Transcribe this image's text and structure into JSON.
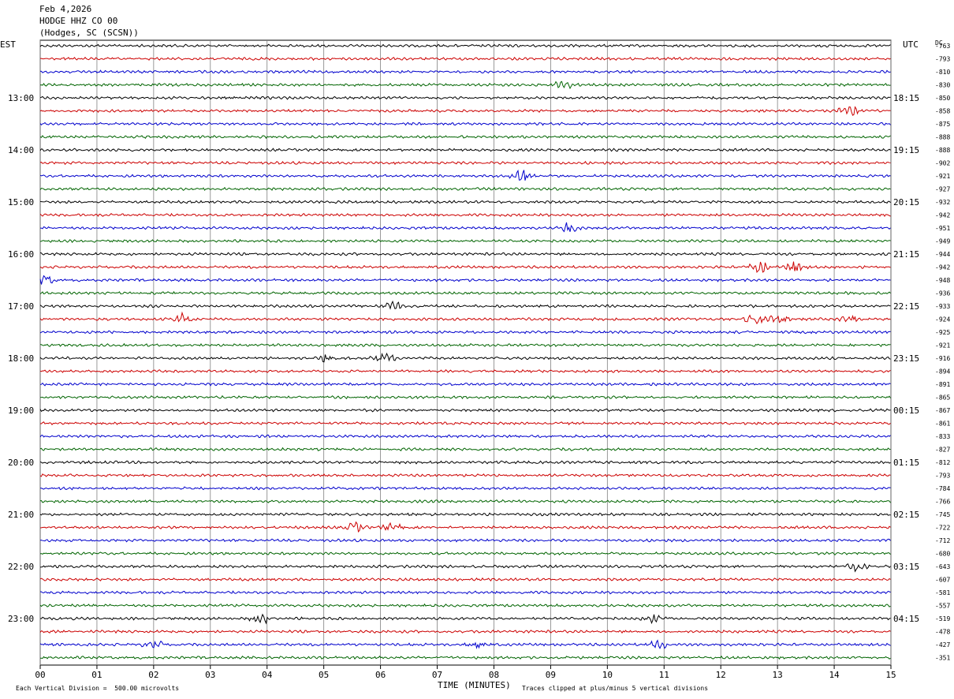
{
  "header": {
    "date": "Feb 4,2026",
    "station": "HODGE HHZ CO 00",
    "location": "(Hodges, SC (SCSN))"
  },
  "left_zone_label": "EST",
  "right_zone_label": "UTC",
  "dc_label": "DC",
  "footer": {
    "x_axis_title": "TIME (MINUTES)",
    "scale_note": "Each Vertical Division =  500.00 microvolts",
    "clip_note": "Traces clipped at plus/minus 5 vertical divisions"
  },
  "chart_data": {
    "type": "line",
    "title": "HODGE HHZ CO 00",
    "xlabel": "TIME (MINUTES)",
    "xlim": [
      0,
      15
    ],
    "x_ticks": [
      "00",
      "01",
      "02",
      "03",
      "04",
      "05",
      "06",
      "07",
      "08",
      "09",
      "10",
      "11",
      "12",
      "13",
      "14",
      "15"
    ],
    "trace_colors": [
      "#000000",
      "#cc0000",
      "#0000cc",
      "#006400"
    ],
    "left_hour_labels": [
      "13:00",
      "14:00",
      "15:00",
      "16:00",
      "17:00",
      "18:00",
      "19:00",
      "20:00",
      "21:00",
      "22:00",
      "23:00"
    ],
    "right_hour_labels": [
      "18:15",
      "19:15",
      "20:15",
      "21:15",
      "22:15",
      "23:15",
      "00:15",
      "01:15",
      "02:15",
      "03:15",
      "04:15"
    ],
    "dc_offsets": [
      -763,
      -793,
      -810,
      -830,
      -850,
      -858,
      -875,
      -888,
      -888,
      -902,
      -921,
      -927,
      -932,
      -942,
      -951,
      -949,
      -944,
      -942,
      -948,
      -936,
      -933,
      -924,
      -925,
      -921,
      -916,
      -894,
      -891,
      -865,
      -867,
      -861,
      -833,
      -827,
      -812,
      -793,
      -784,
      -766,
      -745,
      -722,
      -712,
      -680,
      -643,
      -607,
      -581,
      -557,
      -519,
      -478,
      -427,
      -351
    ],
    "events": [
      {
        "trace": 3,
        "minute": 9.25,
        "strength": 2.2
      },
      {
        "trace": 5,
        "minute": 14.28,
        "strength": 3.0
      },
      {
        "trace": 10,
        "minute": 8.5,
        "strength": 3.5
      },
      {
        "trace": 14,
        "minute": 9.3,
        "strength": 2.0
      },
      {
        "trace": 17,
        "minute": 12.7,
        "strength": 3.2
      },
      {
        "trace": 17,
        "minute": 13.3,
        "strength": 2.6
      },
      {
        "trace": 18,
        "minute": 0.05,
        "strength": 2.5
      },
      {
        "trace": 20,
        "minute": 6.2,
        "strength": 2.0
      },
      {
        "trace": 21,
        "minute": 2.5,
        "strength": 2.2
      },
      {
        "trace": 21,
        "minute": 12.6,
        "strength": 2.6
      },
      {
        "trace": 21,
        "minute": 13.0,
        "strength": 2.6
      },
      {
        "trace": 21,
        "minute": 14.3,
        "strength": 1.8
      },
      {
        "trace": 24,
        "minute": 5.1,
        "strength": 2.0
      },
      {
        "trace": 24,
        "minute": 6.05,
        "strength": 2.6
      },
      {
        "trace": 37,
        "minute": 5.55,
        "strength": 2.2
      },
      {
        "trace": 37,
        "minute": 6.2,
        "strength": 2.0
      },
      {
        "trace": 40,
        "minute": 14.4,
        "strength": 1.8
      },
      {
        "trace": 44,
        "minute": 3.9,
        "strength": 2.4
      },
      {
        "trace": 44,
        "minute": 10.8,
        "strength": 1.8
      },
      {
        "trace": 46,
        "minute": 2.0,
        "strength": 1.8
      },
      {
        "trace": 46,
        "minute": 7.7,
        "strength": 1.8
      },
      {
        "trace": 46,
        "minute": 10.9,
        "strength": 1.8
      }
    ]
  }
}
